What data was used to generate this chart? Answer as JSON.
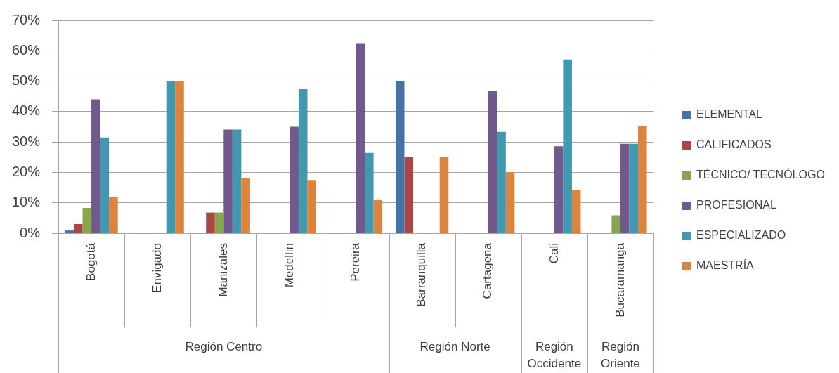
{
  "chart_data": {
    "type": "bar",
    "categories": [
      "Bogotá",
      "Envigado",
      "Manizales",
      "Medellin",
      "Pereira",
      "Barranquilla",
      "Cartagena",
      "Cali",
      "Bucaramanga"
    ],
    "series": [
      {
        "name": "ELEMENTAL",
        "color": "#4572a7",
        "values": [
          0.9,
          null,
          null,
          null,
          null,
          50,
          null,
          null,
          null
        ]
      },
      {
        "name": "CALIFICADOS",
        "color": "#aa4643",
        "values": [
          3.0,
          null,
          6.8,
          null,
          null,
          25,
          null,
          null,
          null
        ]
      },
      {
        "name": "TÉCNICO/ TECNÓLOGO",
        "color": "#89a54e",
        "values": [
          8.3,
          null,
          6.8,
          null,
          null,
          null,
          null,
          null,
          5.9
        ]
      },
      {
        "name": "PROFESIONAL",
        "color": "#71588f",
        "values": [
          44,
          null,
          34.1,
          35,
          62.5,
          null,
          46.7,
          28.6,
          29.4
        ]
      },
      {
        "name": "ESPECIALIZADO",
        "color": "#4198af",
        "values": [
          31.5,
          50,
          34.1,
          47.5,
          26.4,
          null,
          33.3,
          57.1,
          29.4
        ]
      },
      {
        "name": "MAESTRÍA",
        "color": "#db843d",
        "values": [
          11.9,
          50,
          18.2,
          17.5,
          10.9,
          25,
          20,
          14.3,
          35.3
        ]
      }
    ],
    "ylim": [
      0,
      70
    ],
    "yticks": [
      {
        "value": 0,
        "label": "0%"
      },
      {
        "value": 10,
        "label": "10%"
      },
      {
        "value": 20,
        "label": "20%"
      },
      {
        "value": 30,
        "label": "30%"
      },
      {
        "value": 40,
        "label": "40%"
      },
      {
        "value": 50,
        "label": "50%"
      },
      {
        "value": 60,
        "label": "60%"
      },
      {
        "value": 70,
        "label": "70%"
      }
    ],
    "grid": "y",
    "legend": "right",
    "annotations": [
      "Región Centro",
      "Región Norte",
      "Región Occidente",
      "Región Oriente"
    ]
  }
}
